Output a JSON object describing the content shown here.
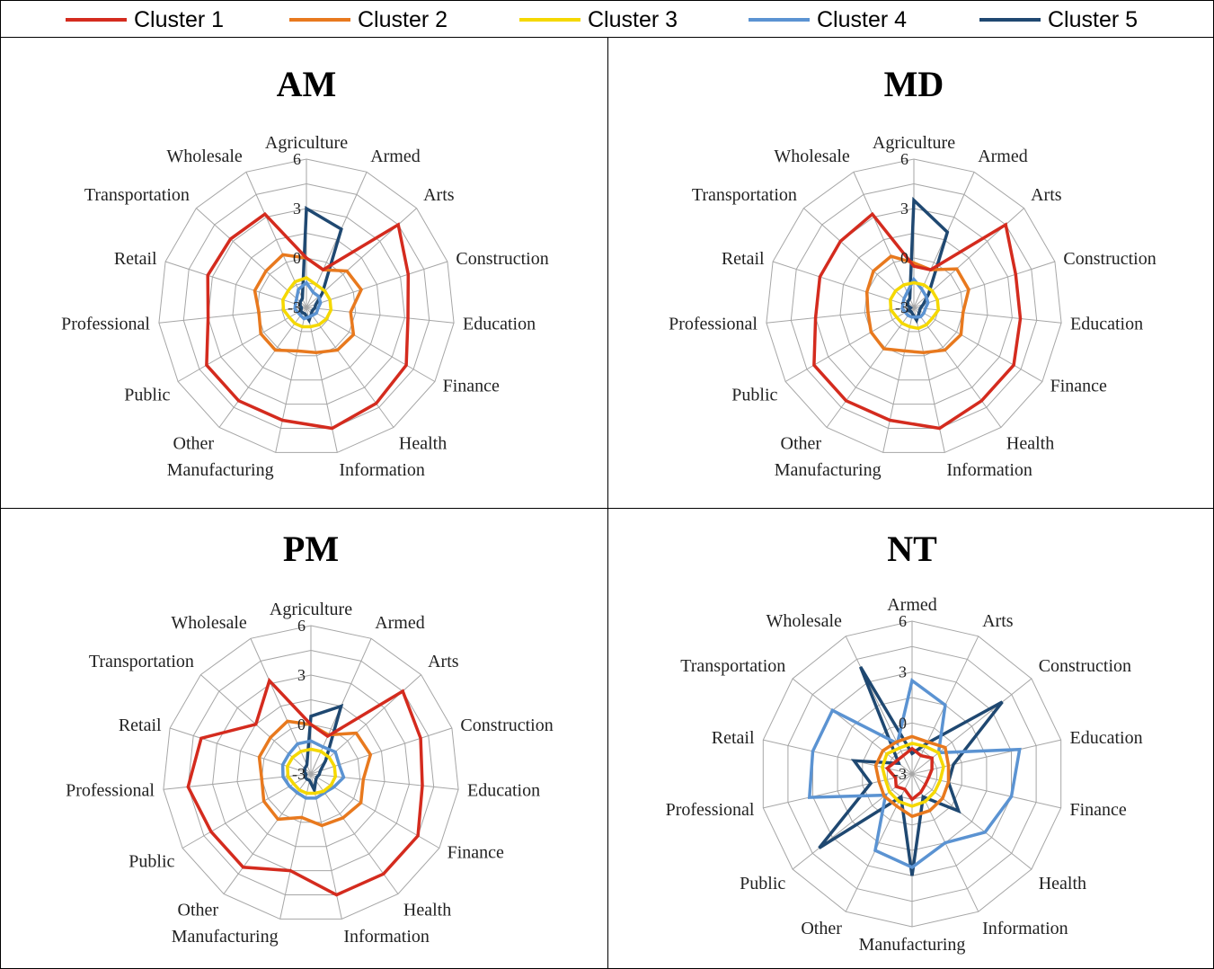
{
  "legend": [
    {
      "name": "Cluster 1",
      "color": "#d42b1e"
    },
    {
      "name": "Cluster 2",
      "color": "#e8791e"
    },
    {
      "name": "Cluster 3",
      "color": "#f5d800"
    },
    {
      "name": "Cluster 4",
      "color": "#5b93d2"
    },
    {
      "name": "Cluster 5",
      "color": "#1f4871"
    }
  ],
  "chart_data": [
    {
      "type": "radar",
      "title": "AM",
      "categories": [
        "Agriculture",
        "Armed",
        "Arts",
        "Construction",
        "Education",
        "Finance",
        "Health",
        "Information",
        "Manufacturing",
        "Other",
        "Public",
        "Professional",
        "Retail",
        "Transportation",
        "Wholesale"
      ],
      "ticks": [
        "-3",
        "0",
        "3",
        "6"
      ],
      "range": [
        -3,
        6
      ],
      "grid": true,
      "series": [
        {
          "name": "Cluster 1",
          "values": [
            0,
            -0.5,
            4.5,
            3.5,
            3.2,
            4.0,
            4.2,
            4.5,
            4.0,
            4.0,
            4.0,
            3.0,
            3.3,
            3.2,
            3.2
          ]
        },
        {
          "name": "Cluster 2",
          "values": [
            0,
            -0.5,
            0.3,
            0.5,
            -0.3,
            0.3,
            0.2,
            -0.2,
            -0.3,
            0.2,
            0.2,
            -0.1,
            0.3,
            0.3,
            0.5
          ]
        },
        {
          "name": "Cluster 3",
          "values": [
            -1.2,
            -1.5,
            -1.5,
            -1.5,
            -1.5,
            -1.6,
            -1.7,
            -1.8,
            -1.8,
            -1.8,
            -1.8,
            -1.6,
            -1.5,
            -1.5,
            -1.3
          ]
        },
        {
          "name": "Cluster 4",
          "values": [
            -1.5,
            -2.0,
            -2.0,
            -2.1,
            -2.3,
            -2.3,
            -2.4,
            -2.4,
            -2.3,
            -2.4,
            -2.4,
            -2.3,
            -2.3,
            -2.2,
            -1.8
          ]
        },
        {
          "name": "Cluster 5",
          "values": [
            3.0,
            2.2,
            -1.7,
            -2.4,
            -2.5,
            -2.6,
            -2.5,
            -2.2,
            -2.6,
            -2.6,
            -2.6,
            -2.7,
            -2.6,
            -2.5,
            -2.4
          ]
        }
      ]
    },
    {
      "type": "radar",
      "title": "MD",
      "categories": [
        "Agriculture",
        "Armed",
        "Arts",
        "Construction",
        "Education",
        "Finance",
        "Health",
        "Information",
        "Manufacturing",
        "Other",
        "Public",
        "Professional",
        "Retail",
        "Transportation",
        "Wholesale"
      ],
      "ticks": [
        "-3",
        "0",
        "3",
        "6"
      ],
      "range": [
        -3,
        6
      ],
      "grid": true,
      "series": [
        {
          "name": "Cluster 1",
          "values": [
            -0.5,
            -0.5,
            4.5,
            3.5,
            3.5,
            4.0,
            4.0,
            4.5,
            4.0,
            4.0,
            4.0,
            3.0,
            3.0,
            3.0,
            3.2
          ]
        },
        {
          "name": "Cluster 2",
          "values": [
            -0.3,
            -0.5,
            0.5,
            0.5,
            0.0,
            0.3,
            0.2,
            -0.2,
            -0.3,
            0.1,
            0.0,
            -0.2,
            0.0,
            0.3,
            0.4
          ]
        },
        {
          "name": "Cluster 3",
          "values": [
            -1.5,
            -1.5,
            -1.5,
            -1.5,
            -1.5,
            -1.7,
            -1.7,
            -1.7,
            -1.8,
            -1.8,
            -1.8,
            -1.6,
            -1.5,
            -1.5,
            -1.5
          ]
        },
        {
          "name": "Cluster 4",
          "values": [
            -1.3,
            -1.8,
            -2.0,
            -2.1,
            -2.3,
            -2.3,
            -2.3,
            -2.4,
            -2.4,
            -2.4,
            -2.4,
            -2.3,
            -2.3,
            -2.2,
            -2.0
          ]
        },
        {
          "name": "Cluster 5",
          "values": [
            3.5,
            2.0,
            -1.8,
            -2.4,
            -2.6,
            -2.6,
            -2.5,
            -2.2,
            -2.6,
            -2.7,
            -2.6,
            -2.8,
            -2.6,
            -2.5,
            -2.4
          ]
        }
      ]
    },
    {
      "type": "radar",
      "title": "PM",
      "categories": [
        "Agriculture",
        "Armed",
        "Arts",
        "Construction",
        "Education",
        "Finance",
        "Health",
        "Information",
        "Manufacturing",
        "Other",
        "Public",
        "Professional",
        "Retail",
        "Transportation",
        "Wholesale"
      ],
      "ticks": [
        "-3",
        "0",
        "3",
        "6"
      ],
      "range": [
        -3,
        6
      ],
      "grid": true,
      "series": [
        {
          "name": "Cluster 1",
          "values": [
            0,
            -0.5,
            4.5,
            4.0,
            3.8,
            4.5,
            4.5,
            4.5,
            3.0,
            4.0,
            4.0,
            4.5,
            4.0,
            1.5,
            3.2
          ]
        },
        {
          "name": "Cluster 2",
          "values": [
            0,
            -0.4,
            0.7,
            0.8,
            0.2,
            0.5,
            0.3,
            0.2,
            -0.3,
            0.4,
            0.3,
            0.0,
            0.3,
            0.3,
            0.5
          ]
        },
        {
          "name": "Cluster 3",
          "values": [
            -1.5,
            -1.5,
            -1.5,
            -1.5,
            -1.5,
            -1.6,
            -1.7,
            -1.8,
            -1.8,
            -1.8,
            -1.8,
            -1.6,
            -1.5,
            -1.5,
            -1.5
          ]
        },
        {
          "name": "Cluster 4",
          "values": [
            -1.0,
            -1.2,
            -1.0,
            -1.2,
            -1.0,
            -1.4,
            -1.6,
            -1.5,
            -1.5,
            -1.6,
            -1.5,
            -1.3,
            -1.2,
            -1.2,
            -1.0
          ]
        },
        {
          "name": "Cluster 5",
          "values": [
            0.5,
            1.5,
            -1.8,
            -2.4,
            -2.5,
            -2.6,
            -2.5,
            -2.0,
            -2.6,
            -2.6,
            -2.6,
            -2.7,
            -2.6,
            -2.5,
            -2.4
          ]
        }
      ]
    },
    {
      "type": "radar",
      "title": "NT",
      "categories": [
        "Armed",
        "Arts",
        "Construction",
        "Education",
        "Finance",
        "Health",
        "Information",
        "Manufacturing",
        "Other",
        "Public",
        "Professional",
        "Retail",
        "Transportation",
        "Wholesale"
      ],
      "ticks": [
        "-3",
        "0",
        "3",
        "6"
      ],
      "range": [
        -3,
        6
      ],
      "grid": true,
      "series": [
        {
          "name": "Cluster 1",
          "values": [
            -1.5,
            -1.8,
            -1.5,
            -1.8,
            -2.0,
            -2.0,
            -1.8,
            -1.5,
            -2.0,
            -1.8,
            -2.0,
            -1.5,
            -1.8,
            -1.8
          ]
        },
        {
          "name": "Cluster 2",
          "values": [
            -0.8,
            -0.9,
            -0.5,
            -0.8,
            -0.8,
            -0.7,
            -0.6,
            -0.5,
            -0.9,
            -0.9,
            -1.0,
            -0.8,
            -0.8,
            -0.9
          ]
        },
        {
          "name": "Cluster 3",
          "values": [
            -1.2,
            -1.2,
            -1.0,
            -1.1,
            -1.3,
            -1.3,
            -1.2,
            -1.1,
            -1.2,
            -1.3,
            -1.4,
            -1.2,
            -1.1,
            -1.3
          ]
        },
        {
          "name": "Cluster 4",
          "values": [
            2.5,
            1.5,
            -1.0,
            3.5,
            3.0,
            2.5,
            1.5,
            2.5,
            2.0,
            -1.0,
            3.2,
            3.0,
            3.0,
            -1.0
          ]
        },
        {
          "name": "Cluster 5",
          "values": [
            -1.8,
            -1.0,
            3.8,
            -0.5,
            -0.8,
            0.5,
            -1.5,
            3.0,
            -1.5,
            4.0,
            -0.5,
            0.5,
            -2.0,
            4.0
          ]
        }
      ]
    }
  ]
}
